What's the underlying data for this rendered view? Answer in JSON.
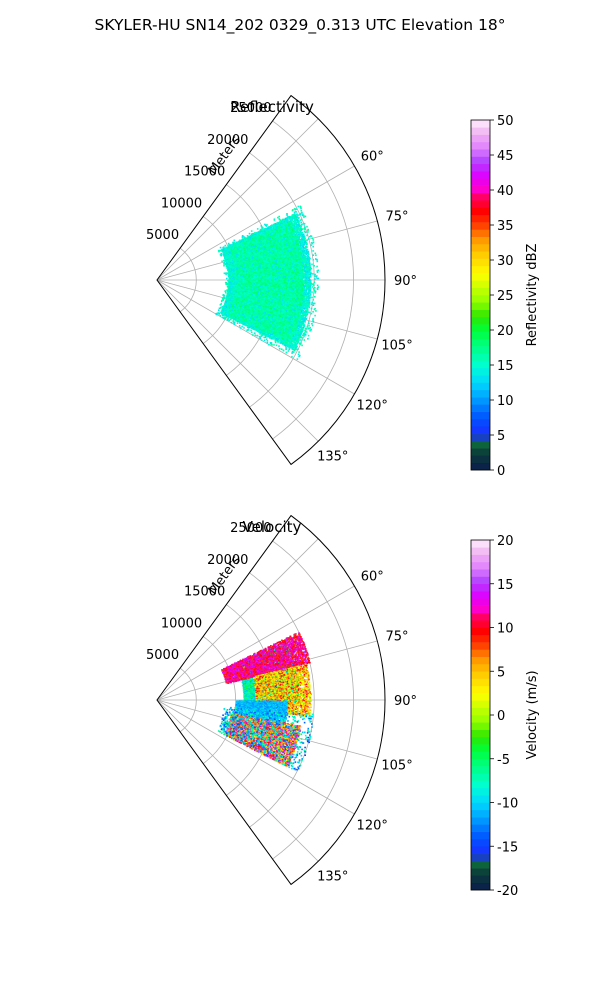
{
  "figure": {
    "suptitle": "SKYLER-HU  SN14_202  0329_0.313 UTC Elevation 18°"
  },
  "chart_data": [
    {
      "type": "polar-sector-scatter",
      "title": "Reflectivity",
      "radial_label": "Meters",
      "radial_ticks": [
        5000,
        10000,
        15000,
        20000,
        25000
      ],
      "r_max": 29000,
      "theta_ticks_deg": [
        60,
        75,
        90,
        105,
        120,
        135
      ],
      "theta_tick_labels": [
        "60°",
        "75°",
        "90°",
        "105°",
        "120°",
        "135°"
      ],
      "theta_range_deg": [
        36,
        144
      ],
      "grid": true,
      "colorbar": {
        "label": "Reflectivity dBZ",
        "ticks": [
          0,
          5,
          10,
          15,
          20,
          25,
          30,
          35,
          40,
          45,
          50
        ],
        "range": [
          0,
          50
        ],
        "colormap": "pyart_NWSRef-like"
      },
      "echo_region": {
        "theta_deg": [
          64,
          117
        ],
        "r_m": [
          8500,
          20500
        ]
      },
      "bands": [
        {
          "theta_deg": [
            64,
            117
          ],
          "r_m": [
            9000,
            19500
          ],
          "value_range": [
            12,
            17
          ],
          "density": 0.55
        },
        {
          "theta_deg": [
            66,
            115
          ],
          "r_m": [
            10000,
            18500
          ],
          "value_range": [
            15,
            19
          ],
          "density": 0.6
        },
        {
          "theta_deg": [
            62,
            120
          ],
          "r_m": [
            8500,
            20500
          ],
          "value_range": [
            13,
            17
          ],
          "density": 0.08
        }
      ]
    },
    {
      "type": "polar-sector-scatter",
      "title": "Velocity",
      "radial_label": "Meters",
      "radial_ticks": [
        5000,
        10000,
        15000,
        20000,
        25000
      ],
      "r_max": 29000,
      "theta_ticks_deg": [
        60,
        75,
        90,
        105,
        120,
        135
      ],
      "theta_tick_labels": [
        "60°",
        "75°",
        "90°",
        "105°",
        "120°",
        "135°"
      ],
      "theta_range_deg": [
        36,
        144
      ],
      "grid": true,
      "colorbar": {
        "label": "Velocity (m/s)",
        "ticks": [
          -20,
          -15,
          -10,
          -5,
          0,
          5,
          10,
          15,
          20
        ],
        "range": [
          -20,
          20
        ],
        "colormap": "pyart_BuDRd18-like"
      },
      "echo_region": {
        "theta_deg": [
          64,
          117
        ],
        "r_m": [
          8500,
          20500
        ]
      },
      "bands": [
        {
          "theta_deg": [
            65,
            92
          ],
          "r_m": [
            11000,
            18000
          ],
          "value_range": [
            -12,
            -3
          ],
          "density": 0.55
        },
        {
          "theta_deg": [
            64,
            76
          ],
          "r_m": [
            9000,
            20000
          ],
          "value_range": [
            8,
            15
          ],
          "density": 0.45
        },
        {
          "theta_deg": [
            76,
            96
          ],
          "r_m": [
            12500,
            19500
          ],
          "value_range": [
            -1,
            10
          ],
          "density": 0.35
        },
        {
          "theta_deg": [
            90,
            106
          ],
          "r_m": [
            10000,
            16500
          ],
          "value_range": [
            -13,
            -9
          ],
          "density": 0.55
        },
        {
          "theta_deg": [
            100,
            117
          ],
          "r_m": [
            9500,
            18500
          ],
          "value_range": [
            0,
            16
          ],
          "density": 0.55
        },
        {
          "theta_deg": [
            95,
            117
          ],
          "r_m": [
            8500,
            20000
          ],
          "value_range": [
            -15,
            -5
          ],
          "density": 0.08
        }
      ]
    }
  ]
}
